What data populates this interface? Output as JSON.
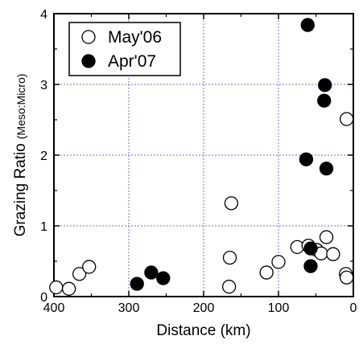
{
  "chart_data": {
    "type": "scatter",
    "title": "",
    "xlabel": "Distance (km)",
    "ylabel_main": "Grazing Ratio",
    "ylabel_sub": "(Meso:Micro)",
    "xlim": [
      400,
      0
    ],
    "ylim": [
      0,
      4
    ],
    "x_reversed": true,
    "x_ticks": [
      400,
      300,
      200,
      100,
      0
    ],
    "y_ticks": [
      0,
      1,
      2,
      3,
      4
    ],
    "grid": true,
    "grid_color": "#6f6fd6",
    "legend_position": "top-left",
    "series": [
      {
        "name": "May'06",
        "marker": "open-circle",
        "points": [
          [
            397,
            0.13
          ],
          [
            380,
            0.11
          ],
          [
            366,
            0.32
          ],
          [
            353,
            0.42
          ],
          [
            163,
            1.32
          ],
          [
            165,
            0.55
          ],
          [
            166,
            0.14
          ],
          [
            116,
            0.34
          ],
          [
            100,
            0.49
          ],
          [
            75,
            0.7
          ],
          [
            60,
            0.72
          ],
          [
            49,
            0.66
          ],
          [
            36,
            0.84
          ],
          [
            43,
            0.61
          ],
          [
            27,
            0.6
          ],
          [
            10,
            0.32
          ],
          [
            9,
            0.27
          ],
          [
            9,
            2.51
          ]
        ]
      },
      {
        "name": "Apr'07",
        "marker": "filled-circle",
        "points": [
          [
            289,
            0.18
          ],
          [
            270,
            0.34
          ],
          [
            254,
            0.26
          ],
          [
            61,
            3.84
          ],
          [
            38,
            2.99
          ],
          [
            39,
            2.77
          ],
          [
            63,
            1.94
          ],
          [
            36,
            1.81
          ],
          [
            57,
            0.68
          ],
          [
            57,
            0.43
          ]
        ]
      }
    ]
  }
}
